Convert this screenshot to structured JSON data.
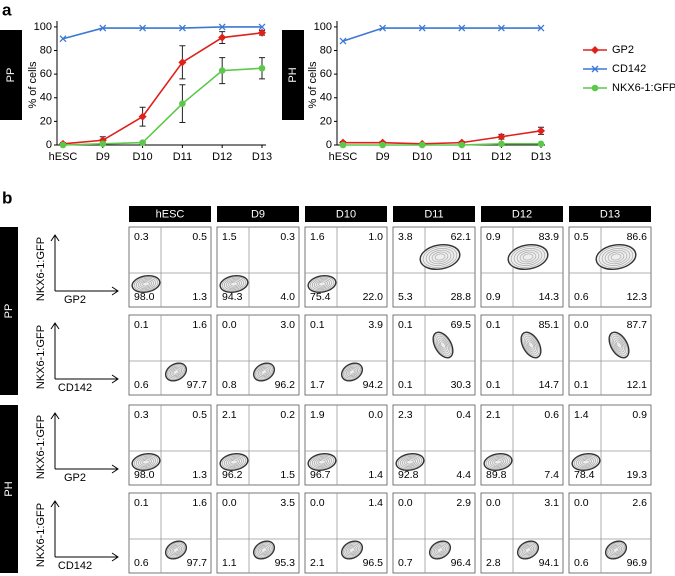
{
  "panel_a_label": "a",
  "panel_b_label": "b",
  "chart_data": [
    {
      "type": "line",
      "panel": "PP",
      "ylabel": "% of cells",
      "categories": [
        "hESC",
        "D9",
        "D10",
        "D11",
        "D12",
        "D13"
      ],
      "ylim": [
        0,
        105
      ],
      "yticks": [
        0,
        20,
        40,
        60,
        80,
        100
      ],
      "legend": false,
      "series": [
        {
          "color": "#e0201b",
          "marker": "diamond",
          "values": [
            1,
            4,
            24,
            70,
            91,
            95
          ],
          "errors": [
            1,
            3,
            8,
            14,
            5,
            2
          ]
        },
        {
          "color": "#3a78d4",
          "marker": "x",
          "values": [
            90,
            99,
            99,
            99,
            100,
            100
          ]
        },
        {
          "color": "#5cc84a",
          "marker": "circle",
          "values": [
            0,
            1,
            2,
            35,
            63,
            65
          ],
          "errors": [
            0,
            1,
            1,
            16,
            11,
            9
          ]
        }
      ]
    },
    {
      "type": "line",
      "panel": "PH",
      "ylabel": "% of cells",
      "categories": [
        "hESC",
        "D9",
        "D10",
        "D11",
        "D12",
        "D13"
      ],
      "ylim": [
        0,
        105
      ],
      "yticks": [
        0,
        20,
        40,
        60,
        80,
        100
      ],
      "legend": true,
      "series": [
        {
          "name": "GP2",
          "color": "#e0201b",
          "marker": "diamond",
          "values": [
            2,
            2,
            1,
            2,
            7,
            12
          ],
          "errors": [
            1,
            1,
            0.5,
            1,
            2,
            3
          ]
        },
        {
          "name": "CD142",
          "color": "#3a78d4",
          "marker": "x",
          "values": [
            88,
            99,
            99,
            99,
            99,
            99
          ]
        },
        {
          "name": "NKX6-1:GFP",
          "color": "#5cc84a",
          "marker": "circle",
          "values": [
            0,
            0,
            0,
            0,
            1,
            1
          ]
        }
      ]
    }
  ],
  "flow": {
    "columns": [
      "hESC",
      "D9",
      "D10",
      "D11",
      "D12",
      "D13"
    ],
    "groups": [
      {
        "label": "PP",
        "rows": [
          {
            "y_label": "NKX6-1:GFP",
            "x_label": "GP2",
            "quadrants": [
              [
                "0.3",
                "0.5",
                "98.0",
                "1.3"
              ],
              [
                "1.5",
                "0.3",
                "94.3",
                "4.0"
              ],
              [
                "1.6",
                "1.0",
                "75.4",
                "22.0"
              ],
              [
                "3.8",
                "62.1",
                "5.3",
                "28.8"
              ],
              [
                "0.9",
                "83.9",
                "0.9",
                "14.3"
              ],
              [
                "0.5",
                "86.6",
                "0.6",
                "12.3"
              ]
            ]
          },
          {
            "y_label": "NKX6-1:GFP",
            "x_label": "CD142",
            "quadrants": [
              [
                "0.1",
                "1.6",
                "0.6",
                "97.7"
              ],
              [
                "0.0",
                "3.0",
                "0.8",
                "96.2"
              ],
              [
                "0.1",
                "3.9",
                "1.7",
                "94.2"
              ],
              [
                "0.1",
                "69.5",
                "0.1",
                "30.3"
              ],
              [
                "0.1",
                "85.1",
                "0.1",
                "14.7"
              ],
              [
                "0.0",
                "87.7",
                "0.1",
                "12.1"
              ]
            ]
          }
        ]
      },
      {
        "label": "PH",
        "rows": [
          {
            "y_label": "NKX6-1:GFP",
            "x_label": "GP2",
            "quadrants": [
              [
                "0.3",
                "0.5",
                "98.0",
                "1.3"
              ],
              [
                "2.1",
                "0.2",
                "96.2",
                "1.5"
              ],
              [
                "1.9",
                "0.0",
                "96.7",
                "1.4"
              ],
              [
                "2.3",
                "0.4",
                "92.8",
                "4.4"
              ],
              [
                "2.1",
                "0.6",
                "89.8",
                "7.4"
              ],
              [
                "1.4",
                "0.9",
                "78.4",
                "19.3"
              ]
            ]
          },
          {
            "y_label": "NKX6-1:GFP",
            "x_label": "CD142",
            "quadrants": [
              [
                "0.1",
                "1.6",
                "0.6",
                "97.7"
              ],
              [
                "0.0",
                "3.5",
                "1.1",
                "95.3"
              ],
              [
                "0.0",
                "1.4",
                "2.1",
                "96.5"
              ],
              [
                "0.0",
                "2.9",
                "0.7",
                "96.4"
              ],
              [
                "0.0",
                "3.1",
                "2.8",
                "94.1"
              ],
              [
                "0.0",
                "2.6",
                "0.6",
                "96.9"
              ]
            ]
          }
        ]
      }
    ]
  }
}
